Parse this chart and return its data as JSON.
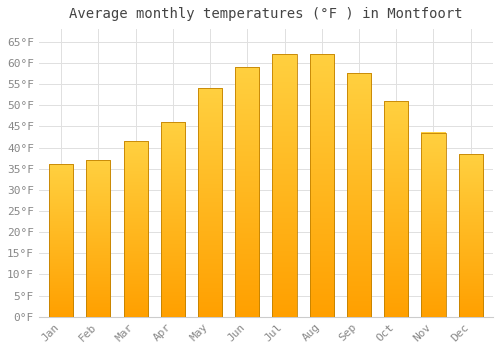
{
  "title": "Average monthly temperatures (°F ) in Montfoort",
  "months": [
    "Jan",
    "Feb",
    "Mar",
    "Apr",
    "May",
    "Jun",
    "Jul",
    "Aug",
    "Sep",
    "Oct",
    "Nov",
    "Dec"
  ],
  "values": [
    36,
    37,
    41.5,
    46,
    54,
    59,
    62,
    62,
    57.5,
    51,
    43.5,
    38.5
  ],
  "bar_color_top": "#FFD040",
  "bar_color_bottom": "#FFA000",
  "bar_edge_color": "#C08000",
  "background_color": "#FFFFFF",
  "grid_color": "#E0E0E0",
  "title_fontsize": 10,
  "tick_fontsize": 8,
  "title_color": "#444444",
  "tick_color": "#888888",
  "ylim": [
    0,
    68
  ],
  "yticks": [
    0,
    5,
    10,
    15,
    20,
    25,
    30,
    35,
    40,
    45,
    50,
    55,
    60,
    65
  ]
}
